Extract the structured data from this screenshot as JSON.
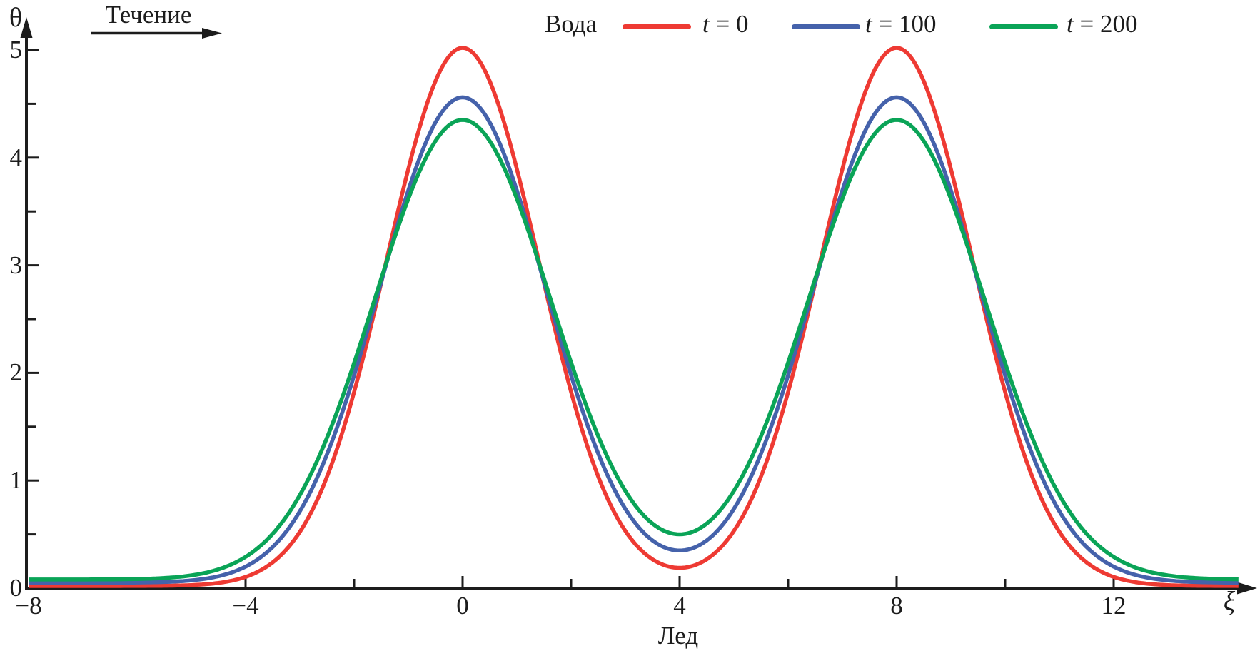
{
  "chart_data": {
    "type": "line",
    "title": "",
    "xlabel": "ξ",
    "ylabel": "θ",
    "xlim": [
      -8,
      14.6
    ],
    "ylim": [
      0,
      5.45
    ],
    "grid": false,
    "legend": {
      "title": "Вода",
      "position": "top"
    },
    "annotations": {
      "flow": "Течение",
      "ice": "Лед"
    },
    "x_major_ticks": [
      {
        "value": -8,
        "label": "−8"
      },
      {
        "value": -4,
        "label": "−4"
      },
      {
        "value": 0,
        "label": "0"
      },
      {
        "value": 4,
        "label": "4"
      },
      {
        "value": 8,
        "label": "8"
      },
      {
        "value": 12,
        "label": "12"
      }
    ],
    "x_minor_ticks": [
      -6,
      -2,
      2,
      6,
      10,
      14
    ],
    "y_major_ticks": [
      {
        "value": 0,
        "label": "0"
      },
      {
        "value": 1,
        "label": "1"
      },
      {
        "value": 2,
        "label": "2"
      },
      {
        "value": 3,
        "label": "3"
      },
      {
        "value": 4,
        "label": "4"
      },
      {
        "value": 5,
        "label": "5"
      }
    ],
    "y_minor_ticks": [
      0.5,
      1.5,
      2.5,
      3.5,
      4.5
    ],
    "x": [
      -8,
      -7.5,
      -7,
      -6.5,
      -6,
      -5.5,
      -5,
      -4.5,
      -4,
      -3.5,
      -3,
      -2.5,
      -2,
      -1.5,
      -1,
      -0.5,
      0,
      0.5,
      1,
      1.5,
      2,
      2.5,
      3,
      3.5,
      4,
      4.5,
      5,
      5.5,
      6,
      6.5,
      7,
      7.5,
      8,
      8.5,
      9,
      9.5,
      10,
      10.5,
      11,
      11.5,
      12,
      12.5,
      13,
      13.5,
      14,
      14.5
    ],
    "series": [
      {
        "name": "t = 0",
        "color": "#ee3a33",
        "values": [
          0.02,
          0.02,
          0.02,
          0.02,
          0.02,
          0.02,
          0.03,
          0.05,
          0.1,
          0.24,
          0.52,
          1.04,
          1.82,
          2.84,
          3.89,
          4.71,
          5.02,
          4.71,
          3.89,
          2.84,
          1.82,
          1.04,
          0.53,
          0.27,
          0.19,
          0.27,
          0.53,
          1.04,
          1.82,
          2.84,
          3.89,
          4.71,
          5.02,
          4.71,
          3.89,
          2.84,
          1.82,
          1.04,
          0.52,
          0.24,
          0.1,
          0.05,
          0.03,
          0.02,
          0.02,
          0.02
        ],
        "model": {
          "baseline": 0.02,
          "amplitude": 5.0,
          "sigma": 1.4,
          "centers": [
            0,
            8
          ]
        }
      },
      {
        "name": "t = 100",
        "color": "#4562ab",
        "values": [
          0.05,
          0.05,
          0.05,
          0.05,
          0.05,
          0.06,
          0.07,
          0.11,
          0.2,
          0.38,
          0.71,
          1.24,
          1.98,
          2.85,
          3.7,
          4.33,
          4.56,
          4.33,
          3.7,
          2.85,
          1.98,
          1.25,
          0.74,
          0.44,
          0.35,
          0.44,
          0.74,
          1.25,
          1.98,
          2.85,
          3.7,
          4.33,
          4.56,
          4.33,
          3.7,
          2.85,
          1.98,
          1.24,
          0.71,
          0.38,
          0.2,
          0.11,
          0.07,
          0.06,
          0.05,
          0.05
        ],
        "model": {
          "baseline": 0.05,
          "amplitude": 4.51,
          "sigma": 1.533,
          "centers": [
            0,
            8
          ]
        }
      },
      {
        "name": "t = 200",
        "color": "#0aa457",
        "values": [
          0.08,
          0.08,
          0.08,
          0.08,
          0.08,
          0.09,
          0.12,
          0.17,
          0.29,
          0.51,
          0.86,
          1.4,
          2.09,
          2.88,
          3.62,
          4.15,
          4.35,
          4.15,
          3.62,
          2.88,
          2.09,
          1.41,
          0.9,
          0.61,
          0.5,
          0.61,
          0.9,
          1.41,
          2.09,
          2.88,
          3.62,
          4.15,
          4.35,
          4.15,
          3.62,
          2.88,
          2.09,
          1.4,
          0.86,
          0.51,
          0.29,
          0.17,
          0.12,
          0.09,
          0.08,
          0.08
        ],
        "model": {
          "baseline": 0.08,
          "amplitude": 4.27,
          "sigma": 1.63,
          "centers": [
            0,
            8
          ]
        }
      }
    ],
    "axis_color": "#1c1c1c"
  }
}
